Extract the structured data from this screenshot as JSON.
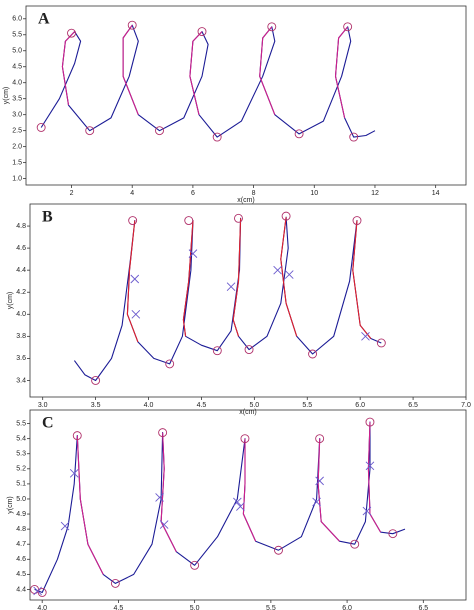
{
  "chart_data": [
    {
      "type": "line",
      "label": "A",
      "xlabel": "x(cm)",
      "ylabel": "y(cm)",
      "xlim": [
        0.5,
        15
      ],
      "ylim": [
        0.8,
        6.4
      ],
      "xticks": [
        2,
        4,
        6,
        8,
        10,
        12,
        14
      ],
      "yticks": [
        {
          "value": 1,
          "label": "1.0"
        },
        1.5,
        {
          "value": 2,
          "label": "2.0"
        },
        2.5,
        {
          "value": 3,
          "label": "3.0"
        },
        3.5,
        {
          "value": 4,
          "label": "4.0"
        },
        4.5,
        {
          "value": 5,
          "label": "5.0"
        },
        5.5,
        {
          "value": 6,
          "label": "6.0"
        }
      ],
      "series": [
        {
          "color": "#1c1c96",
          "x": [
            1,
            1.6,
            2.1,
            2.3,
            2.1,
            1.8,
            1.7,
            1.9,
            2.6,
            3.3,
            3.9,
            4.2,
            4.0,
            3.7,
            3.7,
            4.2,
            4.9,
            5.7,
            6.3,
            6.5,
            6.3,
            6.0,
            5.9,
            6.2,
            6.8,
            7.6,
            8.3,
            8.7,
            8.6,
            8.3,
            8.2,
            8.7,
            9.5,
            10.3,
            10.9,
            11.2,
            11.1,
            10.8,
            10.7,
            11.0,
            11.3,
            11.7,
            12.0
          ],
          "values": [
            2.6,
            3.5,
            4.6,
            5.3,
            5.6,
            5.3,
            4.5,
            3.3,
            2.5,
            2.9,
            4.2,
            5.3,
            5.8,
            5.4,
            4.2,
            3.0,
            2.5,
            2.9,
            4.2,
            5.2,
            5.6,
            5.3,
            4.2,
            3.0,
            2.3,
            2.8,
            4.2,
            5.3,
            5.75,
            5.4,
            4.2,
            3.0,
            2.4,
            2.8,
            4.2,
            5.3,
            5.75,
            5.4,
            4.2,
            2.9,
            2.3,
            2.35,
            2.5
          ]
        },
        {
          "color": "#d0208a",
          "x": [
            2.1,
            1.8,
            1.7,
            1.9,
            null,
            4.0,
            3.7,
            3.7,
            4.2,
            null,
            6.3,
            6.0,
            5.9,
            6.2,
            null,
            8.6,
            8.3,
            8.2,
            8.7,
            null,
            11.1,
            10.8,
            10.7,
            11.0
          ],
          "values": [
            5.6,
            5.3,
            4.5,
            3.3,
            null,
            5.8,
            5.4,
            4.2,
            3.0,
            null,
            5.6,
            5.3,
            4.2,
            3.0,
            null,
            5.75,
            5.4,
            4.2,
            3.0,
            null,
            5.75,
            5.4,
            4.2,
            2.9
          ]
        },
        {
          "color": "#b0306a",
          "marker": "circle",
          "x": [
            1,
            2,
            2.6,
            4,
            4.9,
            6.3,
            6.8,
            8.6,
            9.5,
            11.1,
            11.3
          ],
          "values": [
            2.6,
            5.55,
            2.5,
            5.8,
            2.5,
            5.6,
            2.3,
            5.75,
            2.4,
            5.75,
            2.3
          ]
        }
      ]
    },
    {
      "type": "line",
      "label": "B",
      "xlabel": "x(cm)",
      "ylabel": "y(cm)",
      "xlim": [
        2.88,
        7.0
      ],
      "ylim": [
        3.25,
        5.0
      ],
      "xticks": [
        {
          "value": 3,
          "label": "3.0"
        },
        3.5,
        {
          "value": 4,
          "label": "4.0"
        },
        4.5,
        {
          "value": 5,
          "label": "5.0"
        },
        5.5,
        {
          "value": 6,
          "label": "6.0"
        },
        6.5,
        {
          "value": 7,
          "label": "7.0"
        }
      ],
      "yticks": [
        3.4,
        3.6,
        3.8,
        {
          "value": 4,
          "label": "4.0"
        },
        4.2,
        4.4,
        4.6,
        4.8
      ],
      "series": [
        {
          "color": "#1c1c96",
          "x": [
            3.3,
            3.4,
            3.5,
            3.65,
            3.75,
            3.83,
            3.87,
            3.82,
            3.8,
            3.9,
            4.05,
            4.2,
            4.32,
            4.4,
            4.42,
            4.38,
            4.33,
            4.35,
            4.5,
            4.65,
            4.78,
            4.86,
            4.87,
            4.85,
            4.8,
            4.85,
            4.95,
            5.12,
            5.25,
            5.32,
            5.3,
            5.25,
            5.3,
            5.4,
            5.55,
            5.75,
            5.9,
            5.97,
            5.93,
            6.0,
            6.1,
            6.2
          ],
          "values": [
            3.58,
            3.45,
            3.4,
            3.6,
            3.9,
            4.5,
            4.85,
            4.4,
            4.0,
            3.75,
            3.6,
            3.55,
            3.8,
            4.4,
            4.85,
            4.3,
            3.95,
            3.8,
            3.72,
            3.67,
            3.85,
            4.4,
            4.87,
            4.3,
            3.95,
            3.8,
            3.68,
            3.8,
            4.1,
            4.6,
            4.88,
            4.5,
            4.1,
            3.8,
            3.64,
            3.8,
            4.3,
            4.85,
            4.4,
            3.9,
            3.78,
            3.74
          ]
        },
        {
          "color": "#e0202a",
          "x": [
            3.87,
            3.82,
            3.8,
            3.9,
            null,
            4.42,
            4.38,
            4.33,
            4.35,
            null,
            4.87,
            4.85,
            4.8,
            4.85,
            null,
            5.3,
            5.25,
            5.3,
            5.4,
            null,
            5.97,
            5.93,
            6.0,
            6.1
          ],
          "values": [
            4.85,
            4.4,
            4.0,
            3.75,
            null,
            4.85,
            4.3,
            3.95,
            3.8,
            null,
            4.87,
            4.3,
            3.95,
            3.8,
            null,
            4.88,
            4.5,
            4.1,
            3.8,
            null,
            4.85,
            4.4,
            3.9,
            3.78
          ]
        },
        {
          "color": "#b0306a",
          "marker": "circle",
          "x": [
            3.5,
            3.85,
            4.2,
            4.38,
            4.65,
            4.85,
            4.95,
            5.3,
            5.55,
            5.97,
            6.2
          ],
          "values": [
            3.4,
            4.85,
            3.55,
            4.85,
            3.67,
            4.87,
            3.68,
            4.89,
            3.64,
            4.85,
            3.74
          ]
        },
        {
          "color": "#6a5acd",
          "marker": "x",
          "x": [
            3.87,
            3.88,
            4.42,
            4.78,
            5.22,
            5.33,
            6.05
          ],
          "values": [
            4.32,
            4.0,
            4.55,
            4.25,
            4.4,
            4.36,
            3.8
          ]
        }
      ]
    },
    {
      "type": "line",
      "label": "C",
      "xlabel": "x(cm)",
      "ylabel": "y(cm)",
      "xlim": [
        3.92,
        6.78
      ],
      "ylim": [
        4.33,
        5.59
      ],
      "xticks": [
        {
          "value": 4,
          "label": "4.0"
        },
        4.5,
        {
          "value": 5,
          "label": "5.0"
        },
        5.5,
        {
          "value": 6,
          "label": "6.0"
        },
        6.5
      ],
      "yticks": [
        4.4,
        4.5,
        4.6,
        4.7,
        4.8,
        4.9,
        {
          "value": 5,
          "label": "5.0"
        },
        5.1,
        5.2,
        5.3,
        5.4,
        5.5
      ],
      "series": [
        {
          "color": "#1c1c96",
          "x": [
            3.95,
            4.0,
            4.1,
            4.17,
            4.21,
            4.23,
            4.25,
            4.3,
            4.4,
            4.48,
            4.6,
            4.72,
            4.78,
            4.79,
            4.8,
            4.78,
            4.88,
            5.0,
            5.15,
            5.28,
            5.33,
            5.33,
            5.32,
            5.4,
            5.55,
            5.7,
            5.8,
            5.82,
            5.81,
            5.83,
            5.95,
            6.05,
            6.12,
            6.15,
            6.15,
            6.14,
            6.15,
            6.22,
            6.3,
            6.38
          ],
          "values": [
            4.4,
            4.38,
            4.6,
            4.82,
            5.1,
            5.42,
            5.0,
            4.7,
            4.5,
            4.44,
            4.5,
            4.7,
            5.0,
            5.44,
            5.2,
            4.85,
            4.65,
            4.56,
            4.75,
            5.0,
            5.4,
            5.1,
            4.9,
            4.72,
            4.66,
            4.75,
            5.0,
            5.4,
            5.1,
            4.85,
            4.72,
            4.7,
            4.85,
            5.2,
            5.51,
            5.2,
            4.9,
            4.78,
            4.77,
            4.8
          ]
        },
        {
          "color": "#d0208a",
          "x": [
            4.23,
            4.25,
            4.3,
            4.4,
            null,
            4.79,
            4.8,
            4.78,
            4.88,
            null,
            5.33,
            5.33,
            5.32,
            5.4,
            null,
            5.82,
            5.81,
            5.83,
            5.95,
            null,
            6.15,
            6.14,
            6.15,
            6.22
          ],
          "values": [
            5.42,
            5.0,
            4.7,
            4.5,
            null,
            5.44,
            5.2,
            4.85,
            4.65,
            null,
            5.4,
            5.1,
            4.9,
            4.72,
            null,
            5.4,
            5.1,
            4.85,
            4.72,
            null,
            5.51,
            5.2,
            4.9,
            4.78
          ]
        },
        {
          "color": "#b0306a",
          "marker": "circle",
          "x": [
            3.95,
            4.0,
            4.23,
            4.48,
            4.79,
            5.0,
            5.33,
            5.55,
            5.82,
            6.05,
            6.15,
            6.3
          ],
          "values": [
            4.4,
            4.38,
            5.42,
            4.44,
            5.44,
            4.56,
            5.4,
            4.66,
            5.4,
            4.7,
            5.51,
            4.77
          ]
        },
        {
          "color": "#6a5acd",
          "marker": "x",
          "x": [
            3.97,
            4.15,
            4.21,
            4.77,
            4.8,
            5.28,
            5.3,
            5.8,
            5.82,
            6.13,
            6.15
          ],
          "values": [
            4.39,
            4.82,
            5.17,
            5.01,
            4.83,
            4.98,
            4.95,
            4.98,
            5.12,
            4.92,
            5.22
          ]
        }
      ]
    }
  ]
}
